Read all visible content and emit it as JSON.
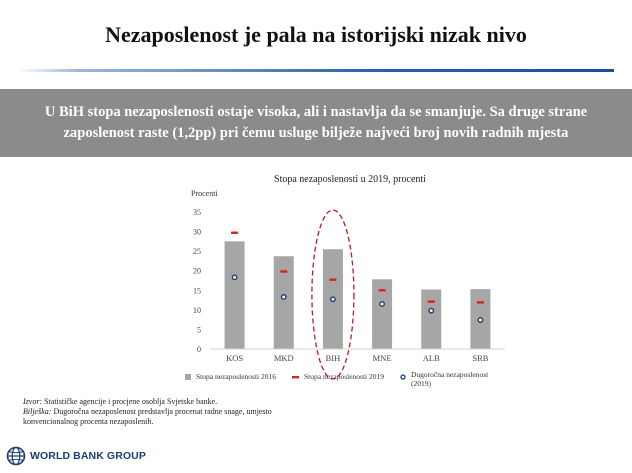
{
  "slide": {
    "title": "Nezaposlenost je pala na istorijski nizak nivo",
    "banner_line1": "U BiH stopa nezaposlenosti ostaje visoka, ali i nastavlja da se smanjuje. Sa druge strane",
    "banner_line2": "zaposlenost raste (1,2pp) pri čemu usluge bilježe najveći broj novih radnih mjesta"
  },
  "chart_data": {
    "type": "bar",
    "title": "Stopa nezaposlenosti u 2019, procenti",
    "ylabel": "Procenti",
    "ylim": [
      0,
      35
    ],
    "yticks": [
      0,
      5,
      10,
      15,
      20,
      25,
      30,
      35
    ],
    "categories": [
      "KOS",
      "MKD",
      "BIH",
      "MNE",
      "ALB",
      "SRB"
    ],
    "highlight_category": "BIH",
    "series": [
      {
        "name": "Stopa nezaposlenosti 2016",
        "kind": "bar",
        "color": "#a6a6a6",
        "values": [
          27.5,
          23.7,
          25.5,
          17.8,
          15.2,
          15.3
        ]
      },
      {
        "name": "Stopa nezaposlenosti 2019",
        "kind": "dash",
        "color": "#e0201b",
        "values": [
          29.7,
          19.8,
          17.7,
          15.0,
          12.1,
          11.9
        ]
      },
      {
        "name": "Dugoročna nezaposlenost (2019)",
        "kind": "circle",
        "color": "#1d3c6e",
        "values": [
          18.3,
          13.3,
          12.7,
          11.5,
          9.8,
          7.4
        ]
      }
    ],
    "legend_position": "bottom",
    "grid": false
  },
  "source": {
    "izvor_label": "Izvor:",
    "izvor_text": " Statističke agencije i procjene osoblja Svjetske banke.",
    "biljeska_label": "Bilješka:",
    "biljeska_text_1": " Dugoročna nezaposlenost predstavlja procenat radne snage, umjesto",
    "biljeska_text_2": "konvencionalnog procenta nezaposlenih."
  },
  "logo": {
    "text": "WORLD BANK GROUP",
    "icon": "globe-icon"
  }
}
